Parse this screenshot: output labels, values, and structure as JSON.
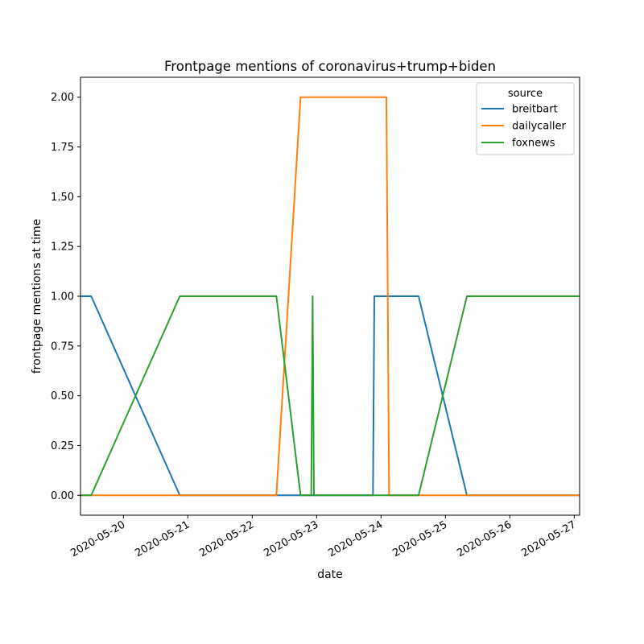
{
  "chart_data": {
    "type": "line",
    "title": "Frontpage mentions of coronavirus+trump+biden",
    "xlabel": "date",
    "ylabel": "frontpage mentions at time",
    "x_axis_type": "datetime",
    "xlim": [
      "2020-05-19 08:00",
      "2020-05-27 02:00"
    ],
    "ylim": [
      -0.1,
      2.1
    ],
    "x_ticks": [
      "2020-05-20",
      "2020-05-21",
      "2020-05-22",
      "2020-05-23",
      "2020-05-24",
      "2020-05-25",
      "2020-05-26",
      "2020-05-27"
    ],
    "y_ticks": [
      "0.00",
      "0.25",
      "0.50",
      "0.75",
      "1.00",
      "1.25",
      "1.50",
      "1.75",
      "2.00"
    ],
    "grid": false,
    "legend": {
      "title": "source",
      "placement": "upper right"
    },
    "series": [
      {
        "name": "breitbart",
        "color": "#1f77b4",
        "points": [
          {
            "x": "2020-05-19 08:00",
            "y": 1
          },
          {
            "x": "2020-05-19 12:00",
            "y": 1
          },
          {
            "x": "2020-05-20 21:00",
            "y": 0
          },
          {
            "x": "2020-05-23 21:00",
            "y": 0
          },
          {
            "x": "2020-05-23 21:30",
            "y": 1
          },
          {
            "x": "2020-05-24 14:00",
            "y": 1
          },
          {
            "x": "2020-05-25 08:00",
            "y": 0
          },
          {
            "x": "2020-05-27 02:00",
            "y": 0
          }
        ]
      },
      {
        "name": "dailycaller",
        "color": "#ff7f0e",
        "points": [
          {
            "x": "2020-05-19 08:00",
            "y": 0
          },
          {
            "x": "2020-05-22 09:00",
            "y": 0
          },
          {
            "x": "2020-05-22 18:00",
            "y": 2
          },
          {
            "x": "2020-05-24 02:00",
            "y": 2
          },
          {
            "x": "2020-05-24 03:00",
            "y": 0
          },
          {
            "x": "2020-05-27 02:00",
            "y": 0
          }
        ]
      },
      {
        "name": "foxnews",
        "color": "#2ca02c",
        "points": [
          {
            "x": "2020-05-19 08:00",
            "y": 0
          },
          {
            "x": "2020-05-19 12:00",
            "y": 0
          },
          {
            "x": "2020-05-20 21:00",
            "y": 1
          },
          {
            "x": "2020-05-22 09:00",
            "y": 1
          },
          {
            "x": "2020-05-22 18:00",
            "y": 0
          },
          {
            "x": "2020-05-22 22:00",
            "y": 0
          },
          {
            "x": "2020-05-22 22:30",
            "y": 1
          },
          {
            "x": "2020-05-22 23:00",
            "y": 0
          },
          {
            "x": "2020-05-24 14:00",
            "y": 0
          },
          {
            "x": "2020-05-25 08:00",
            "y": 1
          },
          {
            "x": "2020-05-27 02:00",
            "y": 1
          }
        ]
      }
    ]
  }
}
